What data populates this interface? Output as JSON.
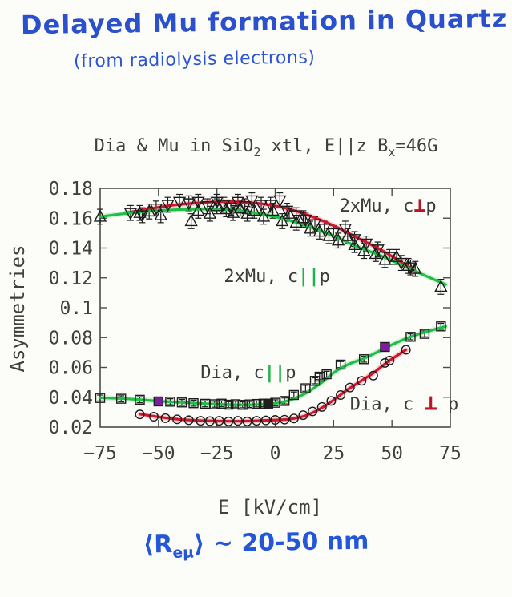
{
  "header": {
    "title": "Delayed Mu formation in Quartz",
    "subtitle": "(from radiolysis electrons)"
  },
  "footnote": {
    "pre": "⟨R",
    "sub": "eμ",
    "post": "⟩ ~ 20-50 nm"
  },
  "colors": {
    "ink": "#404040",
    "frame": "#4c4c4c",
    "marker": "#1c1c1c",
    "hand_blue": "#2b50cc",
    "green": "#1fbf47",
    "red": "#d2152f",
    "purple": "#7d1f9c",
    "black_fill": "#1f1f1f"
  },
  "chart_data": {
    "type": "scatter",
    "title_parts": [
      {
        "t": "Dia & Mu in SiO"
      },
      {
        "t": "2",
        "sub": true
      },
      {
        "t": " xtl, E"
      },
      {
        "t": "||"
      },
      {
        "t": "z B"
      },
      {
        "t": "x",
        "sub": true
      },
      {
        "t": "=46G"
      }
    ],
    "xlabel": "E [kV/cm]",
    "ylabel": "Asymmetries",
    "xlim": [
      -75,
      75
    ],
    "ylim": [
      0.02,
      0.18
    ],
    "grid": false,
    "xticks": {
      "values": [
        -75,
        -50,
        -25,
        0,
        25,
        50,
        75
      ],
      "labels": [
        "−75",
        "−50",
        "−25",
        "0",
        "25",
        "50",
        "75"
      ]
    },
    "yticks": {
      "values": [
        0.18,
        0.16,
        0.14,
        0.12,
        0.1,
        0.08,
        0.06,
        0.04,
        0.02
      ],
      "labels": [
        "0.18",
        "0.16",
        "0.14",
        "0.12",
        "0.1",
        "0.08",
        "0.06",
        "0.04",
        "0.02"
      ]
    },
    "series": [
      {
        "name": "2xMu, c⊥p",
        "marker": "triangle-down",
        "color": "#d2152f",
        "err": 0.005,
        "points": [
          [
            -62,
            0.1635
          ],
          [
            -57,
            0.162
          ],
          [
            -51,
            0.1665
          ],
          [
            -46,
            0.169
          ],
          [
            -41,
            0.171
          ],
          [
            -37,
            0.17
          ],
          [
            -33,
            0.171
          ],
          [
            -29,
            0.168
          ],
          [
            -25,
            0.171
          ],
          [
            -22,
            0.169
          ],
          [
            -19,
            0.167
          ],
          [
            -16,
            0.171
          ],
          [
            -13,
            0.168
          ],
          [
            -10,
            0.172
          ],
          [
            -6,
            0.169
          ],
          [
            -2,
            0.169
          ],
          [
            2,
            0.172
          ],
          [
            5,
            0.165
          ],
          [
            9,
            0.162
          ],
          [
            13,
            0.159
          ],
          [
            17,
            0.156
          ],
          [
            21,
            0.153
          ],
          [
            25,
            0.15
          ],
          [
            30,
            0.153
          ],
          [
            34,
            0.146
          ],
          [
            39,
            0.143
          ],
          [
            44,
            0.139
          ],
          [
            49,
            0.134
          ],
          [
            54,
            0.13
          ],
          [
            58,
            0.127
          ]
        ],
        "fit": [
          [
            -64,
            0.1635
          ],
          [
            -55,
            0.166
          ],
          [
            -45,
            0.1685
          ],
          [
            -35,
            0.17
          ],
          [
            -25,
            0.171
          ],
          [
            -15,
            0.1708
          ],
          [
            -5,
            0.1695
          ],
          [
            5,
            0.1665
          ],
          [
            15,
            0.1615
          ],
          [
            25,
            0.155
          ],
          [
            35,
            0.147
          ],
          [
            45,
            0.139
          ],
          [
            52,
            0.1325
          ],
          [
            58,
            0.1265
          ],
          [
            60,
            0.124
          ]
        ],
        "specials": []
      },
      {
        "name": "2xMu, c||p",
        "marker": "triangle-up",
        "color": "#1fbf47",
        "err": 0.005,
        "points": [
          [
            -75,
            0.161
          ],
          [
            -58,
            0.1635
          ],
          [
            -54,
            0.1645
          ],
          [
            -49,
            0.162
          ],
          [
            -36,
            0.158
          ],
          [
            -33,
            0.165
          ],
          [
            -28,
            0.163
          ],
          [
            -25,
            0.168
          ],
          [
            -21,
            0.166
          ],
          [
            -18,
            0.1635
          ],
          [
            -15,
            0.1665
          ],
          [
            -12,
            0.163
          ],
          [
            -9,
            0.165
          ],
          [
            -5,
            0.161
          ],
          [
            -1,
            0.165
          ],
          [
            3,
            0.158
          ],
          [
            6,
            0.163
          ],
          [
            9,
            0.157
          ],
          [
            12,
            0.16
          ],
          [
            15,
            0.153
          ],
          [
            19,
            0.151
          ],
          [
            23,
            0.148
          ],
          [
            27,
            0.145
          ],
          [
            31,
            0.148
          ],
          [
            34,
            0.142
          ],
          [
            38,
            0.138
          ],
          [
            43,
            0.136
          ],
          [
            47,
            0.132
          ],
          [
            52,
            0.134
          ],
          [
            57,
            0.128
          ],
          [
            60,
            0.126
          ],
          [
            71,
            0.114
          ]
        ],
        "fit": [
          [
            -75,
            0.161
          ],
          [
            -65,
            0.163
          ],
          [
            -55,
            0.1645
          ],
          [
            -45,
            0.1655
          ],
          [
            -35,
            0.166
          ],
          [
            -25,
            0.166
          ],
          [
            -15,
            0.165
          ],
          [
            -5,
            0.1625
          ],
          [
            5,
            0.159
          ],
          [
            15,
            0.154
          ],
          [
            25,
            0.148
          ],
          [
            35,
            0.141
          ],
          [
            45,
            0.135
          ],
          [
            55,
            0.128
          ],
          [
            65,
            0.121
          ],
          [
            73,
            0.1155
          ]
        ],
        "specials": []
      },
      {
        "name": "Dia, c||p",
        "marker": "square",
        "color": "#1fbf47",
        "err": 0.002,
        "points": [
          [
            -75,
            0.0395
          ],
          [
            -66,
            0.039
          ],
          [
            -58,
            0.0383
          ],
          [
            -45,
            0.037
          ],
          [
            -40,
            0.0365
          ],
          [
            -35,
            0.036
          ],
          [
            -30,
            0.0356
          ],
          [
            -26,
            0.0353
          ],
          [
            -23,
            0.0357
          ],
          [
            -20,
            0.035
          ],
          [
            -17,
            0.0353
          ],
          [
            -14,
            0.0349
          ],
          [
            -11,
            0.0352
          ],
          [
            -8,
            0.0355
          ],
          [
            -5,
            0.0357
          ],
          [
            0,
            0.0363
          ],
          [
            4,
            0.0375
          ],
          [
            8,
            0.0415
          ],
          [
            13,
            0.046
          ],
          [
            17,
            0.051
          ],
          [
            19,
            0.0538
          ],
          [
            22,
            0.0554
          ],
          [
            28,
            0.0619
          ],
          [
            38,
            0.0655
          ],
          [
            58,
            0.0805
          ],
          [
            64,
            0.0825
          ],
          [
            71,
            0.0875
          ]
        ],
        "fit": [
          [
            -75,
            0.0397
          ],
          [
            -62,
            0.0388
          ],
          [
            -50,
            0.0374
          ],
          [
            -40,
            0.0365
          ],
          [
            -30,
            0.0357
          ],
          [
            -20,
            0.035
          ],
          [
            -12,
            0.0349
          ],
          [
            -4,
            0.0354
          ],
          [
            2,
            0.0364
          ],
          [
            8,
            0.039
          ],
          [
            14,
            0.0435
          ],
          [
            20,
            0.05
          ],
          [
            26,
            0.0575
          ],
          [
            32,
            0.0625
          ],
          [
            38,
            0.066
          ],
          [
            44,
            0.0705
          ],
          [
            50,
            0.0752
          ],
          [
            58,
            0.0805
          ],
          [
            66,
            0.0845
          ],
          [
            73,
            0.0875
          ]
        ],
        "specials": [
          {
            "x": -50,
            "y": 0.0372,
            "fill": "#7d1f9c"
          },
          {
            "x": -3,
            "y": 0.0357,
            "fill": "#1f1f1f"
          },
          {
            "x": 47,
            "y": 0.0737,
            "fill": "#7d1f9c"
          }
        ]
      },
      {
        "name": "Dia, c⊥p",
        "marker": "circle",
        "color": "#d2152f",
        "err": 0,
        "points": [
          [
            -58,
            0.0285
          ],
          [
            -52,
            0.027
          ],
          [
            -47,
            0.026
          ],
          [
            -42,
            0.0252
          ],
          [
            -37,
            0.0246
          ],
          [
            -32,
            0.0242
          ],
          [
            -28,
            0.024
          ],
          [
            -24,
            0.0242
          ],
          [
            -20,
            0.0238
          ],
          [
            -16,
            0.0242
          ],
          [
            -12,
            0.0238
          ],
          [
            -8,
            0.0242
          ],
          [
            -4,
            0.0245
          ],
          [
            0,
            0.0248
          ],
          [
            4,
            0.025
          ],
          [
            8,
            0.0258
          ],
          [
            12,
            0.028
          ],
          [
            16,
            0.0305
          ],
          [
            20,
            0.0335
          ],
          [
            24,
            0.0375
          ],
          [
            28,
            0.0415
          ],
          [
            32,
            0.0465
          ],
          [
            37,
            0.051
          ],
          [
            42,
            0.0545
          ],
          [
            47,
            0.063
          ],
          [
            49,
            0.0646
          ],
          [
            56,
            0.0718
          ]
        ],
        "fit": [
          [
            -58,
            0.0287
          ],
          [
            -50,
            0.0268
          ],
          [
            -42,
            0.0253
          ],
          [
            -34,
            0.0245
          ],
          [
            -26,
            0.0241
          ],
          [
            -18,
            0.0239
          ],
          [
            -10,
            0.0241
          ],
          [
            -2,
            0.0246
          ],
          [
            6,
            0.0253
          ],
          [
            12,
            0.0272
          ],
          [
            18,
            0.0312
          ],
          [
            24,
            0.037
          ],
          [
            30,
            0.044
          ],
          [
            36,
            0.0502
          ],
          [
            42,
            0.0562
          ],
          [
            48,
            0.0635
          ],
          [
            56,
            0.0718
          ]
        ],
        "specials": []
      }
    ],
    "annotations": [
      {
        "x": 27.5,
        "y": 0.1645,
        "parts": [
          {
            "t": "2xMu, c"
          },
          {
            "t": "⊥",
            "color": "#c01226",
            "bold": true,
            "size": 25
          },
          {
            "t": "p"
          }
        ]
      },
      {
        "x": -22,
        "y": 0.1172,
        "parts": [
          {
            "t": "2xMu, c"
          },
          {
            "t": "||",
            "color": "#1db34a",
            "bold": true
          },
          {
            "t": "p"
          }
        ]
      },
      {
        "x": -32,
        "y": 0.0528,
        "parts": [
          {
            "t": "Dia, c"
          },
          {
            "t": "||",
            "color": "#1db34a",
            "bold": true
          },
          {
            "t": "p"
          }
        ]
      },
      {
        "x": 32,
        "y": 0.0315,
        "parts": [
          {
            "t": "Dia, c "
          },
          {
            "t": "⊥",
            "color": "#c01226",
            "bold": true,
            "size": 27
          },
          {
            "t": " p"
          }
        ]
      }
    ]
  }
}
